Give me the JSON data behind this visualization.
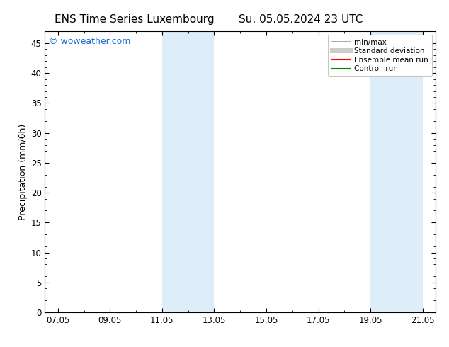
{
  "title": "ENS Time Series Luxembourg",
  "title2": "Su. 05.05.2024 23 UTC",
  "ylabel": "Precipitation (mm/6h)",
  "watermark": "© woweather.com",
  "watermark_color": "#1a6ad4",
  "background_color": "#ffffff",
  "plot_bg_color": "#ffffff",
  "ylim": [
    0,
    47
  ],
  "yticks": [
    0,
    5,
    10,
    15,
    20,
    25,
    30,
    35,
    40,
    45
  ],
  "xtick_labels": [
    "07.05",
    "09.05",
    "11.05",
    "13.05",
    "15.05",
    "17.05",
    "19.05",
    "21.05"
  ],
  "xtick_values": [
    0,
    2,
    4,
    6,
    8,
    10,
    12,
    14
  ],
  "xmin": -0.5,
  "xmax": 14.5,
  "shaded_regions": [
    {
      "xmin": 4.0,
      "xmax": 6.0,
      "color": "#ddeef8"
    },
    {
      "xmin": 12.0,
      "xmax": 14.0,
      "color": "#ddeef8"
    }
  ],
  "legend_entries": [
    {
      "label": "min/max",
      "color": "#999999",
      "lw": 1.2,
      "ls": "-"
    },
    {
      "label": "Standard deviation",
      "color": "#cccccc",
      "lw": 5,
      "ls": "-"
    },
    {
      "label": "Ensemble mean run",
      "color": "#ff0000",
      "lw": 1.5,
      "ls": "-"
    },
    {
      "label": "Controll run",
      "color": "#008000",
      "lw": 1.5,
      "ls": "-"
    }
  ],
  "title_fontsize": 11,
  "axis_label_fontsize": 9,
  "tick_fontsize": 8.5,
  "legend_fontsize": 7.5,
  "watermark_fontsize": 9
}
